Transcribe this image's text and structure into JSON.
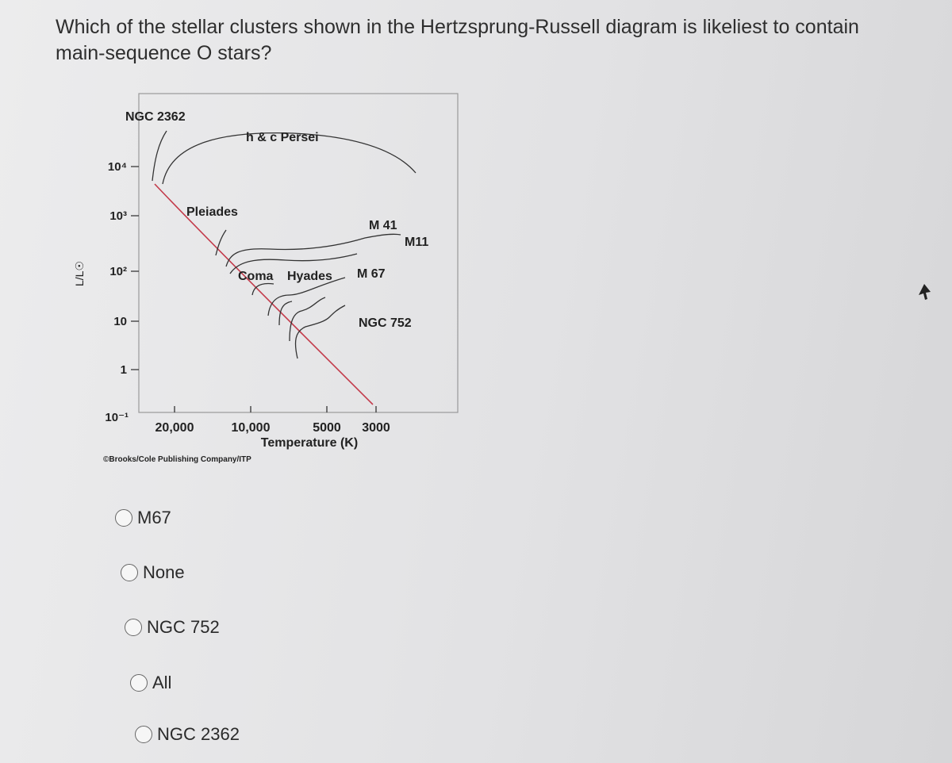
{
  "question": "Which of the stellar clusters shown in the Hertzsprung-Russell diagram is likeliest to contain main-sequence O stars?",
  "figure": {
    "y_axis_label": "L/L☉",
    "y_ticks": [
      "10⁴",
      "10³",
      "10²",
      "10",
      "1",
      "10⁻¹"
    ],
    "x_ticks": [
      "20,000",
      "10,000",
      "5000",
      "3000"
    ],
    "x_axis_label": "Temperature (K)",
    "credit": "©Brooks/Cole Publishing Company/ITP",
    "cluster_labels": [
      "NGC 2362",
      "h & c Persei",
      "Pleiades",
      "M 41",
      "M11",
      "Coma",
      "Hyades",
      "M 67",
      "NGC 752"
    ]
  },
  "options": [
    "M67",
    "None",
    "NGC 752",
    "All",
    "NGC 2362"
  ]
}
